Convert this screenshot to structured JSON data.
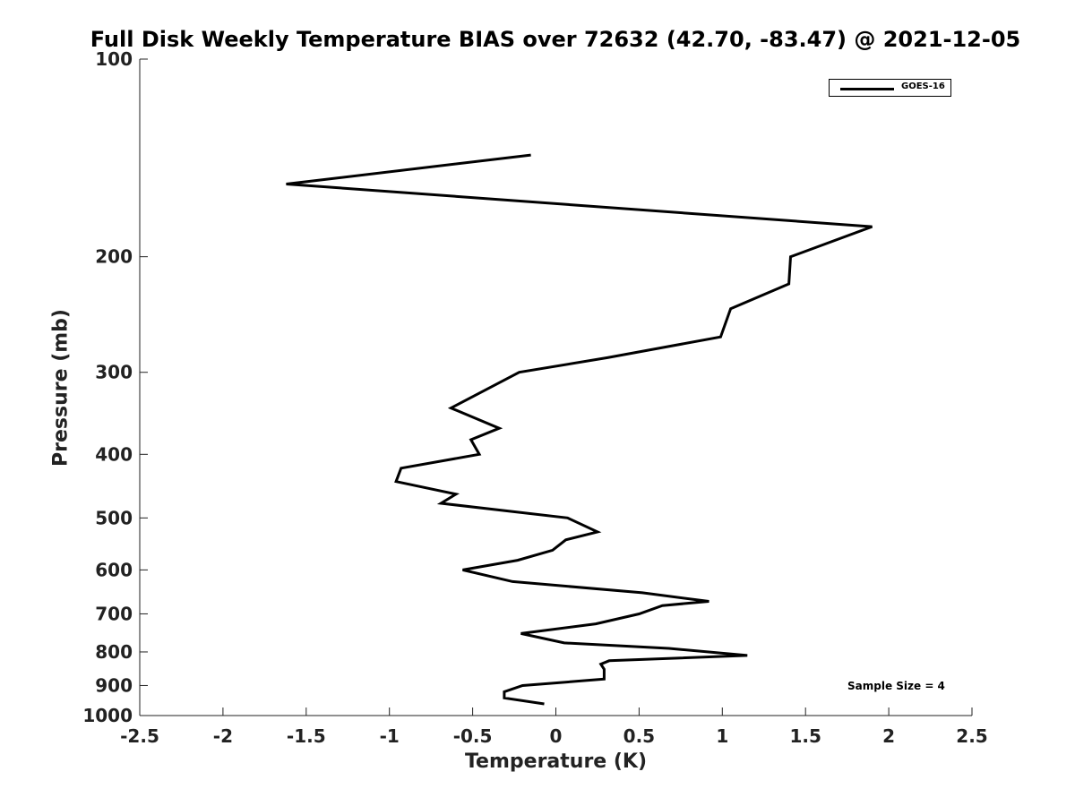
{
  "chart_data": {
    "type": "line",
    "title": "Full Disk Weekly Temperature BIAS over 72632 (42.70, -83.47) @ 2021-12-05",
    "xlabel": "Temperature (K)",
    "ylabel": "Pressure (mb)",
    "xlim": [
      -2.5,
      2.5
    ],
    "ylim": [
      100,
      1000
    ],
    "yscale": "log",
    "yreversed": true,
    "grid": false,
    "legend_position": "top-right",
    "x_ticks": [
      {
        "value": -2.5,
        "label": "-2.5"
      },
      {
        "value": -2,
        "label": "-2"
      },
      {
        "value": -1.5,
        "label": "-1.5"
      },
      {
        "value": -1,
        "label": "-1"
      },
      {
        "value": -0.5,
        "label": "-0.5"
      },
      {
        "value": 0,
        "label": "0"
      },
      {
        "value": 0.5,
        "label": "0.5"
      },
      {
        "value": 1,
        "label": "1"
      },
      {
        "value": 1.5,
        "label": "1.5"
      },
      {
        "value": 2,
        "label": "2"
      },
      {
        "value": 2.5,
        "label": "2.5"
      }
    ],
    "y_ticks": [
      {
        "value": 100,
        "label": "100"
      },
      {
        "value": 200,
        "label": "200"
      },
      {
        "value": 300,
        "label": "300"
      },
      {
        "value": 400,
        "label": "400"
      },
      {
        "value": 500,
        "label": "500"
      },
      {
        "value": 600,
        "label": "600"
      },
      {
        "value": 700,
        "label": "700"
      },
      {
        "value": 800,
        "label": "800"
      },
      {
        "value": 900,
        "label": "900"
      },
      {
        "value": 1000,
        "label": "1000"
      }
    ],
    "series": [
      {
        "name": "GOES-16",
        "color": "#000000",
        "points": [
          {
            "temp": -0.15,
            "pressure": 140
          },
          {
            "temp": -1.62,
            "pressure": 155
          },
          {
            "temp": 1.9,
            "pressure": 180
          },
          {
            "temp": 1.41,
            "pressure": 200
          },
          {
            "temp": 1.4,
            "pressure": 220
          },
          {
            "temp": 1.05,
            "pressure": 240
          },
          {
            "temp": 0.99,
            "pressure": 265
          },
          {
            "temp": 0.31,
            "pressure": 285
          },
          {
            "temp": -0.22,
            "pressure": 300
          },
          {
            "temp": -0.63,
            "pressure": 340
          },
          {
            "temp": -0.34,
            "pressure": 365
          },
          {
            "temp": -0.51,
            "pressure": 380
          },
          {
            "temp": -0.46,
            "pressure": 400
          },
          {
            "temp": -0.93,
            "pressure": 420
          },
          {
            "temp": -0.96,
            "pressure": 440
          },
          {
            "temp": -0.6,
            "pressure": 460
          },
          {
            "temp": -0.69,
            "pressure": 475
          },
          {
            "temp": 0.07,
            "pressure": 500
          },
          {
            "temp": 0.25,
            "pressure": 525
          },
          {
            "temp": 0.06,
            "pressure": 540
          },
          {
            "temp": -0.02,
            "pressure": 560
          },
          {
            "temp": -0.23,
            "pressure": 580
          },
          {
            "temp": -0.56,
            "pressure": 600
          },
          {
            "temp": -0.26,
            "pressure": 625
          },
          {
            "temp": 0.52,
            "pressure": 650
          },
          {
            "temp": 0.92,
            "pressure": 670
          },
          {
            "temp": 0.64,
            "pressure": 680
          },
          {
            "temp": 0.5,
            "pressure": 700
          },
          {
            "temp": 0.24,
            "pressure": 725
          },
          {
            "temp": -0.21,
            "pressure": 750
          },
          {
            "temp": 0.05,
            "pressure": 775
          },
          {
            "temp": 0.68,
            "pressure": 790
          },
          {
            "temp": 1.15,
            "pressure": 810
          },
          {
            "temp": 0.32,
            "pressure": 825
          },
          {
            "temp": 0.27,
            "pressure": 835
          },
          {
            "temp": 0.29,
            "pressure": 850
          },
          {
            "temp": 0.29,
            "pressure": 880
          },
          {
            "temp": -0.2,
            "pressure": 900
          },
          {
            "temp": -0.31,
            "pressure": 920
          },
          {
            "temp": -0.31,
            "pressure": 940
          },
          {
            "temp": -0.07,
            "pressure": 960
          }
        ]
      }
    ],
    "annotations": [
      {
        "text": "Sample Size = 4",
        "position": "bottom-right"
      }
    ]
  }
}
